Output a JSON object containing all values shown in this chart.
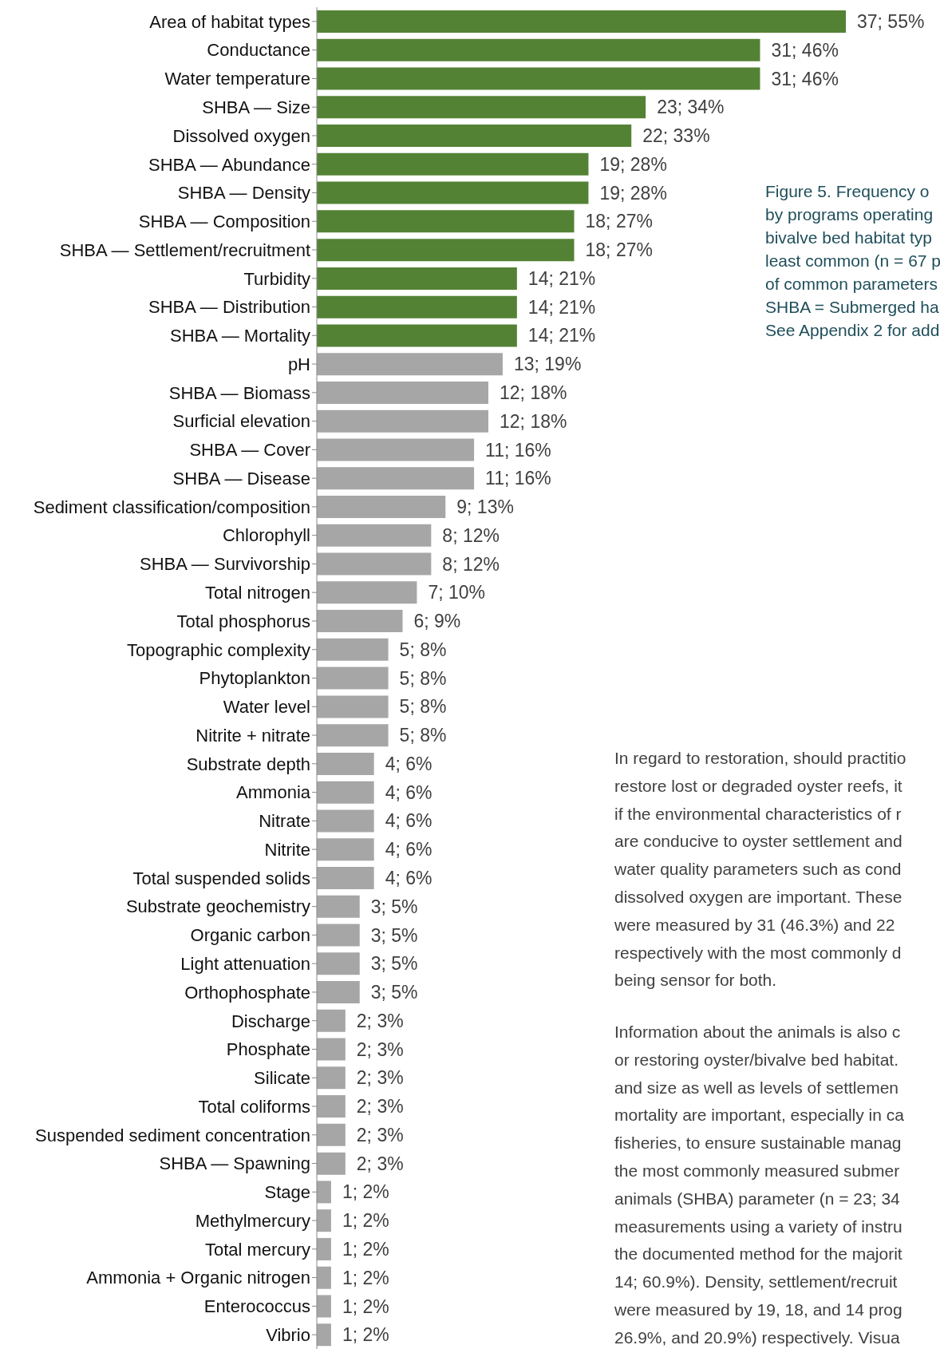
{
  "chart_data": {
    "type": "bar",
    "orientation": "horizontal",
    "categories": [
      "Area of habitat types",
      "Conductance",
      "Water temperature",
      "SHBA — Size",
      "Dissolved oxygen",
      "SHBA — Abundance",
      "SHBA — Density",
      "SHBA — Composition",
      "SHBA — Settlement/recruitment",
      "Turbidity",
      "SHBA — Distribution",
      "SHBA — Mortality",
      "pH",
      "SHBA — Biomass",
      "Surficial elevation",
      "SHBA — Cover",
      "SHBA — Disease",
      "Sediment classification/composition",
      "Chlorophyll",
      "SHBA — Survivorship",
      "Total nitrogen",
      "Total phosphorus",
      "Topographic complexity",
      "Phytoplankton",
      "Water level",
      "Nitrite + nitrate",
      "Substrate depth",
      "Ammonia",
      "Nitrate",
      "Nitrite",
      "Total suspended solids",
      "Substrate geochemistry",
      "Organic carbon",
      "Light attenuation",
      "Orthophosphate",
      "Discharge",
      "Phosphate",
      "Silicate",
      "Total coliforms",
      "Suspended sediment concentration",
      "SHBA — Spawning",
      "Stage",
      "Methylmercury",
      "Total mercury",
      "Ammonia + Organic nitrogen",
      "Enterococcus",
      "Vibrio"
    ],
    "values": [
      37,
      31,
      31,
      23,
      22,
      19,
      19,
      18,
      18,
      14,
      14,
      14,
      13,
      12,
      12,
      11,
      11,
      9,
      8,
      8,
      7,
      6,
      5,
      5,
      5,
      5,
      4,
      4,
      4,
      4,
      4,
      3,
      3,
      3,
      3,
      2,
      2,
      2,
      2,
      2,
      2,
      1,
      1,
      1,
      1,
      1,
      1
    ],
    "value_labels": [
      "37; 55%",
      "31; 46%",
      "31; 46%",
      "23; 34%",
      "22; 33%",
      "19; 28%",
      "19; 28%",
      "18; 27%",
      "18; 27%",
      "14; 21%",
      "14; 21%",
      "14; 21%",
      "13; 19%",
      "12; 18%",
      "12; 18%",
      "11; 16%",
      "11; 16%",
      "9; 13%",
      "8; 12%",
      "8; 12%",
      "7; 10%",
      "6; 9%",
      "5; 8%",
      "5; 8%",
      "5; 8%",
      "5; 8%",
      "4; 6%",
      "4; 6%",
      "4; 6%",
      "4; 6%",
      "4; 6%",
      "3; 5%",
      "3; 5%",
      "3; 5%",
      "3; 5%",
      "2; 3%",
      "2; 3%",
      "2; 3%",
      "2; 3%",
      "2; 3%",
      "2; 3%",
      "1; 2%",
      "1; 2%",
      "1; 2%",
      "1; 2%",
      "1; 2%",
      "1; 2%"
    ],
    "colors": [
      "#548235",
      "#548235",
      "#548235",
      "#548235",
      "#548235",
      "#548235",
      "#548235",
      "#548235",
      "#548235",
      "#548235",
      "#548235",
      "#548235",
      "#a6a6a6",
      "#a6a6a6",
      "#a6a6a6",
      "#a6a6a6",
      "#a6a6a6",
      "#a6a6a6",
      "#a6a6a6",
      "#a6a6a6",
      "#a6a6a6",
      "#a6a6a6",
      "#a6a6a6",
      "#a6a6a6",
      "#a6a6a6",
      "#a6a6a6",
      "#a6a6a6",
      "#a6a6a6",
      "#a6a6a6",
      "#a6a6a6",
      "#a6a6a6",
      "#a6a6a6",
      "#a6a6a6",
      "#a6a6a6",
      "#a6a6a6",
      "#a6a6a6",
      "#a6a6a6",
      "#a6a6a6",
      "#a6a6a6",
      "#a6a6a6",
      "#a6a6a6",
      "#a6a6a6",
      "#a6a6a6",
      "#a6a6a6",
      "#a6a6a6",
      "#a6a6a6",
      "#a6a6a6"
    ],
    "annotations": [
      "Figure 5. Frequency o",
      "by programs operating",
      "bivalve bed habitat typ",
      "least common (n = 67 p",
      "of common parameters",
      "SHBA = Submerged ha",
      "See Appendix 2 for add",
      "In regard to restoration, should practitio",
      "restore lost or degraded oyster reefs, it",
      "if the environmental characteristics of r",
      "are conducive to oyster settlement and",
      "water quality parameters such as cond",
      "dissolved oxygen are important. These",
      "were measured by 31 (46.3%) and 22",
      "respectively with the most commonly d",
      "being sensor for both.",
      "Information about the animals is also c",
      "or restoring oyster/bivalve bed habitat.",
      "and size as well as levels of settlemen",
      "mortality are important, especially in ca",
      "fisheries, to ensure sustainable manag",
      "the most commonly measured submer",
      "animals (SHBA) parameter (n = 23; 34",
      "measurements using a variety of instru",
      "the documented method for the majorit",
      "14; 60.9%). Density, settlement/recruit",
      "were measured by 19, 18, and 14 prog",
      "26.9%, and 20.9%) respectively. Visua"
    ]
  }
}
